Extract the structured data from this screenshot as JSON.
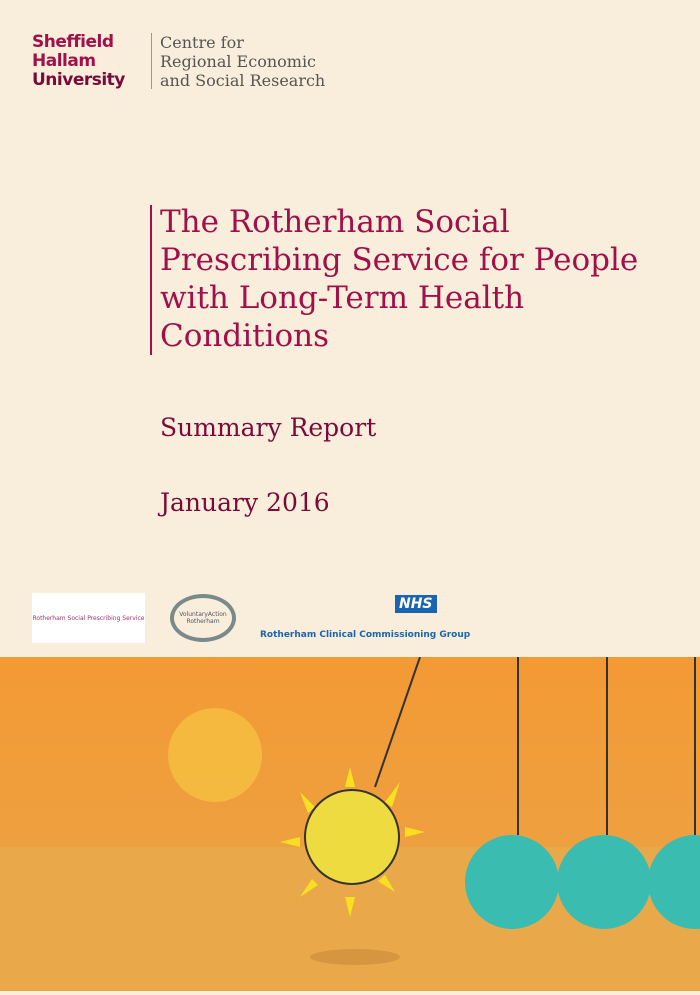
{
  "header": {
    "university": [
      "Sheffield",
      "Hallam",
      "University"
    ],
    "centre": [
      "Centre for",
      "Regional Economic",
      "and Social Research"
    ]
  },
  "title": "The Rotherham Social Prescribing Service for People with Long-Term Health Conditions",
  "subtitle": "Summary Report",
  "date": "January 2016",
  "logos": {
    "rsps": "Rotherham Social Prescribing Service",
    "var": "VoluntaryAction Rotherham",
    "nhs": "NHS",
    "ccg": "Rotherham Clinical Commissioning Group"
  }
}
